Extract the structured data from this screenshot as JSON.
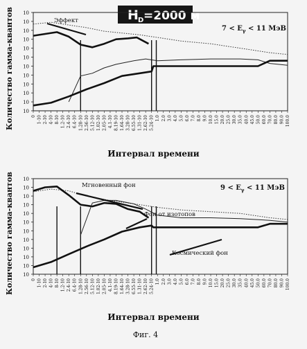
{
  "page": {
    "badge": "H",
    "badge_sub": "D",
    "badge_rest": "=2000 м",
    "caption": "Фиг. 4"
  },
  "chart_data": [
    {
      "type": "line",
      "title": "",
      "xlabel": "Интервал времени",
      "ylabel": "Количество гамма-квантов",
      "energy_label": {
        "a": "7 < E",
        "sub": "γ",
        "b": " < 11 МэВ"
      },
      "y_ticks": [
        "10",
        "10",
        "10",
        "10",
        "10",
        "10",
        "10",
        "10",
        "10",
        "10",
        "10",
        "10"
      ],
      "x_ticks": [
        "0",
        "1-10",
        "2-10",
        "4-10",
        "8-10",
        "1.2-10",
        "2.4-10",
        "6.4-10",
        "1.28-10",
        "2.56-10",
        "5.12-10",
        "1.02-10",
        "2.05-10",
        "4.1-10",
        "8.19-10",
        "1.64-10",
        "3.28-10",
        "6.55-10",
        "1.31-10",
        "2.62-10",
        "5.24-10",
        "1.0",
        "2.0",
        "3.0",
        "4.0",
        "5.0",
        "6.0",
        "7.0",
        "8.0",
        "9.0",
        "10.0",
        "15.0",
        "20.0",
        "25.0",
        "30.0",
        "35.0",
        "40.0",
        "45.0",
        "50.0",
        "60.0",
        "70.0",
        "80.0",
        "90.0",
        "100.0"
      ],
      "ylim": [
        0,
        11
      ],
      "legend": [
        {
          "label": "Эффект",
          "series": "effect"
        }
      ],
      "series": [
        {
          "id": "effect",
          "style": "dotted",
          "x": [
            0,
            3,
            6,
            9,
            12,
            15,
            18,
            21,
            25,
            30,
            35,
            40,
            43
          ],
          "y": [
            9.7,
            9.9,
            9.6,
            9.3,
            8.9,
            8.7,
            8.5,
            8.2,
            7.8,
            7.5,
            7.0,
            6.5,
            6.3
          ]
        },
        {
          "id": "prompt",
          "style": "thick",
          "x": [
            0,
            2,
            4,
            6,
            8,
            10,
            12,
            14,
            16,
            17.5,
            19.5
          ],
          "y": [
            8.4,
            8.6,
            8.8,
            8.3,
            7.4,
            7.1,
            7.5,
            8.0,
            8.1,
            8.2,
            7.5
          ]
        },
        {
          "id": "isotopes",
          "style": "thin",
          "x": [
            6,
            8,
            10,
            12,
            14,
            17,
            19,
            21,
            25,
            30,
            35,
            38,
            40,
            43
          ],
          "y": [
            1.0,
            3.9,
            4.2,
            4.8,
            5.2,
            5.6,
            5.8,
            5.6,
            5.7,
            5.8,
            5.8,
            5.7,
            5.3,
            5.1
          ]
        },
        {
          "id": "cosmic",
          "style": "thick",
          "x": [
            0,
            3,
            6,
            9,
            12,
            15,
            18,
            20,
            20.3,
            30,
            38,
            40,
            43
          ],
          "y": [
            0.6,
            0.9,
            1.6,
            2.4,
            3.1,
            3.9,
            4.2,
            4.4,
            5.0,
            5.0,
            5.0,
            5.6,
            5.6
          ]
        }
      ],
      "drop_lines": [
        8,
        20,
        20.8
      ]
    },
    {
      "type": "line",
      "title": "",
      "xlabel": "Интервал времени",
      "ylabel": "Количество гамма-квантов",
      "energy_label": {
        "a": "9 < E",
        "sub": "γ",
        "b": " < 11 МэВ"
      },
      "y_ticks": [
        "10",
        "10",
        "10",
        "10",
        "10",
        "10",
        "10",
        "10",
        "10",
        "10",
        "10",
        "10"
      ],
      "x_ticks": [
        "0",
        "1-10",
        "2-10",
        "4-10",
        "8-10",
        "1.2-10",
        "2.4-10",
        "6.4-10",
        "1.28-10",
        "2.56-10",
        "5.12-10",
        "1.02-10",
        "2.05-10",
        "4.1-10",
        "8.19-10",
        "1.64-10",
        "3.28-10",
        "6.55-10",
        "1.31-10",
        "2.62-10",
        "5.24-10",
        "1.0",
        "2.0",
        "3.0",
        "4.0",
        "5.0",
        "6.0",
        "7.0",
        "8.0",
        "9.0",
        "10.0",
        "15.0",
        "20.0",
        "25.0",
        "30.0",
        "35.0",
        "40.0",
        "45.0",
        "50.0",
        "60.0",
        "70.0",
        "80.0",
        "90.0",
        "100.0"
      ],
      "ylim": [
        0,
        11
      ],
      "legend": [
        {
          "label": "Мгновенный фон",
          "series": "prompt"
        },
        {
          "label": "Фон от изотопов",
          "series": "isotopes"
        },
        {
          "label": "Космический фон",
          "series": "cosmic"
        }
      ],
      "series": [
        {
          "id": "effect",
          "style": "dotted",
          "x": [
            0,
            3,
            6,
            9,
            12,
            15,
            18,
            21,
            25,
            30,
            35,
            40,
            43
          ],
          "y": [
            9.5,
            9.8,
            9.6,
            9.0,
            8.6,
            8.3,
            8.0,
            7.7,
            7.4,
            7.2,
            7.0,
            6.5,
            6.3
          ]
        },
        {
          "id": "prompt",
          "style": "thick",
          "x": [
            0,
            2,
            4,
            6,
            8,
            10,
            12,
            14,
            16,
            18,
            19.5
          ],
          "y": [
            9.6,
            10.0,
            10.1,
            9.1,
            8.0,
            7.8,
            8.2,
            8.1,
            7.5,
            7.2,
            6.5
          ]
        },
        {
          "id": "isotopes",
          "style": "thin",
          "x": [
            8,
            10,
            12,
            14,
            17,
            19,
            21,
            25,
            30,
            35,
            40,
            43
          ],
          "y": [
            4.5,
            8.2,
            8.5,
            8.5,
            8.1,
            7.5,
            6.8,
            6.5,
            6.5,
            6.4,
            6.2,
            6.0
          ]
        },
        {
          "id": "cosmic",
          "style": "thick",
          "x": [
            0,
            3,
            6,
            9,
            12,
            15,
            18,
            20,
            20.3,
            30,
            38,
            40,
            43
          ],
          "y": [
            0.8,
            1.4,
            2.3,
            3.2,
            4.0,
            4.9,
            5.4,
            5.6,
            5.4,
            5.4,
            5.4,
            5.8,
            5.8
          ]
        }
      ],
      "drop_lines": [
        4,
        8,
        20,
        20.8
      ]
    }
  ]
}
